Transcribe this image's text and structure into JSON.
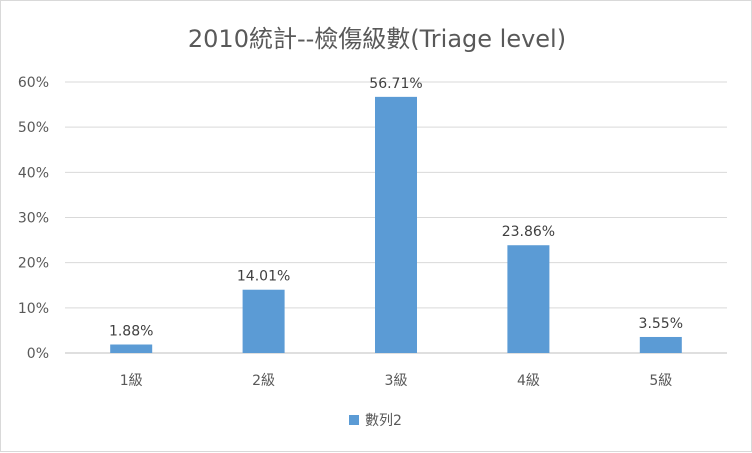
{
  "chart_data": {
    "type": "bar",
    "title": "2010統計--檢傷級數(Triage level)",
    "categories": [
      "1級",
      "2級",
      "3級",
      "4級",
      "5級"
    ],
    "series": [
      {
        "name": "數列2",
        "values": [
          1.88,
          14.01,
          56.71,
          23.86,
          3.55
        ],
        "labels": [
          "1.88%",
          "14.01%",
          "56.71%",
          "23.86%",
          "3.55%"
        ],
        "color": "#5b9bd5"
      }
    ],
    "ylim": [
      0,
      60
    ],
    "yticks": [
      "0%",
      "10%",
      "20%",
      "30%",
      "40%",
      "50%",
      "60%"
    ],
    "grid": true,
    "legend_position": "bottom",
    "gridline_color": "#d9d9d9"
  }
}
